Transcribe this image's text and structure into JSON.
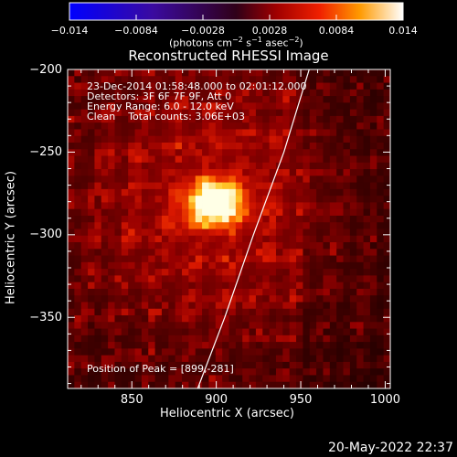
{
  "chart_data": {
    "type": "heatmap",
    "title": "Reconstructed RHESSI Image",
    "xlabel": "Heliocentric X (arcsec)",
    "ylabel": "Heliocentric Y (arcsec)",
    "xlim": [
      812,
      1003
    ],
    "ylim": [
      -393,
      -200
    ],
    "xticks": [
      850,
      900,
      950,
      1000
    ],
    "yticks": [
      -200,
      -250,
      -300,
      -350
    ],
    "colorbar": {
      "range": [
        -0.014,
        0.014
      ],
      "ticks": [
        "−0.014",
        "−0.0084",
        "−0.0028",
        "0.0028",
        "0.0084",
        "0.014"
      ],
      "units_text": "(photons cm",
      "units_exp1": "−2",
      "units_mid": " s",
      "units_exp2": "−1",
      "units_end": " asec",
      "units_exp3": "−2",
      "units_close": ")"
    },
    "annotations": {
      "time_range": "23-Dec-2014 01:58:48.000 to 02:01:12.000",
      "detectors": "Detectors: 3F 6F 7F 9F, Att 0",
      "energy": "Energy Range: 6.0 - 12.0 keV",
      "clean": "Clean    Total counts: 3.06E+03",
      "peak": "Position of Peak = [899,-281]"
    },
    "peak_source": {
      "x": 899,
      "y": -281,
      "value": 0.014
    },
    "limb_points": [
      [
        889,
        -393
      ],
      [
        905,
        -350
      ],
      [
        922,
        -300
      ],
      [
        940,
        -250
      ],
      [
        955,
        -200
      ]
    ],
    "date_stamp": "20-May-2022 22:37"
  }
}
